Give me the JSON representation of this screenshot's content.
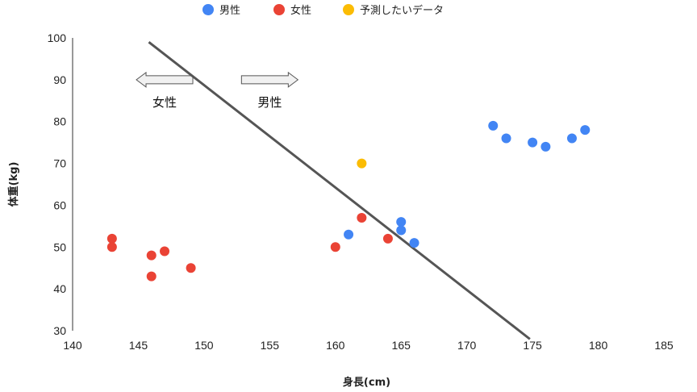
{
  "chart_data": {
    "type": "scatter",
    "xlabel": "身長(cm)",
    "ylabel": "体重(kg)",
    "xlim": [
      140,
      185
    ],
    "ylim": [
      30,
      100
    ],
    "x_ticks": [
      140,
      145,
      150,
      155,
      160,
      165,
      170,
      175,
      180,
      185
    ],
    "y_ticks": [
      30,
      40,
      50,
      60,
      70,
      80,
      90,
      100
    ],
    "legend_position": "top",
    "series": [
      {
        "name": "男性",
        "color": "#4285f4",
        "points": [
          [
            161,
            53
          ],
          [
            165,
            56
          ],
          [
            165,
            54
          ],
          [
            166,
            51
          ],
          [
            172,
            79
          ],
          [
            173,
            76
          ],
          [
            175,
            75
          ],
          [
            176,
            74
          ],
          [
            178,
            76
          ],
          [
            179,
            78
          ]
        ]
      },
      {
        "name": "女性",
        "color": "#ea4335",
        "points": [
          [
            143,
            52
          ],
          [
            143,
            50
          ],
          [
            146,
            48
          ],
          [
            147,
            49
          ],
          [
            146,
            43
          ],
          [
            149,
            45
          ],
          [
            160,
            50
          ],
          [
            162,
            57
          ],
          [
            164,
            52
          ]
        ]
      },
      {
        "name": "予測したいデータ",
        "color": "#fbbc04",
        "points": [
          [
            162,
            70
          ]
        ]
      }
    ],
    "divider_line": {
      "color": "#555555",
      "from": [
        145.8,
        99
      ],
      "to": [
        174.8,
        28
      ]
    },
    "annotations": [
      {
        "text": "女性",
        "arrow_direction": "left",
        "x": 147,
        "y": 90
      },
      {
        "text": "男性",
        "arrow_direction": "right",
        "x": 155,
        "y": 90
      }
    ]
  }
}
